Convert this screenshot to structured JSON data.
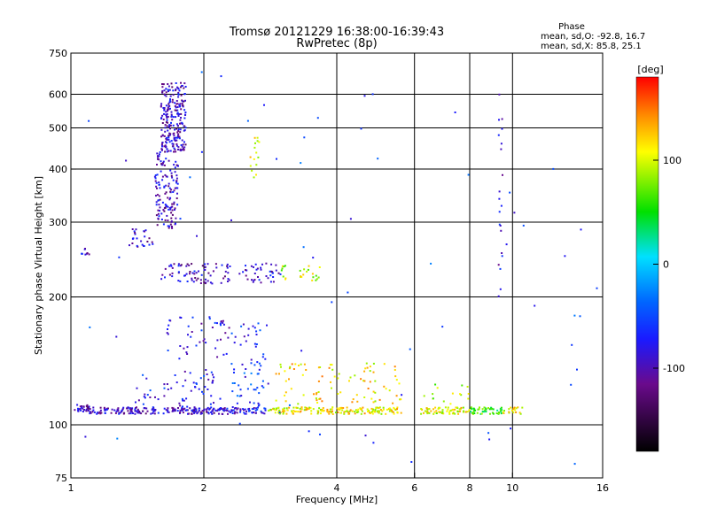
{
  "chart_data": {
    "type": "scatter",
    "title": "Tromsø 20121229 16:38:00-16:39:43",
    "subtitle": "RwPretec (8p)",
    "xlabel": "Frequency [MHz]",
    "ylabel": "Stationary phase Virtual Height [km]",
    "x_scale": "log",
    "y_scale": "log",
    "xlim": [
      1,
      16
    ],
    "ylim": [
      75,
      750
    ],
    "x_ticks": [
      1,
      2,
      4,
      6,
      8,
      10,
      16
    ],
    "y_ticks": [
      75,
      100,
      200,
      300,
      400,
      500,
      600,
      750
    ],
    "grid": true,
    "stats": {
      "heading": "Phase",
      "line_o": "mean, sd,O: -92.8, 16.7",
      "line_x": "mean, sd,X:  85.8, 25.1"
    },
    "colorbar": {
      "label": "[deg]",
      "range": [
        -180,
        180
      ],
      "ticks": [
        100,
        0,
        -100
      ]
    },
    "trace_groups": [
      {
        "x_range": [
          1.02,
          1.1
        ],
        "y_range": [
          107,
          112
        ],
        "phase": -95,
        "count": 30
      },
      {
        "x_range": [
          1.1,
          2.2
        ],
        "y_range": [
          106,
          110
        ],
        "phase": -95,
        "count": 200
      },
      {
        "x_range": [
          2.2,
          2.8
        ],
        "y_range": [
          106,
          110
        ],
        "phase": -80,
        "count": 60
      },
      {
        "x_range": [
          2.8,
          5.6
        ],
        "y_range": [
          106,
          110
        ],
        "phase": 110,
        "count": 180
      },
      {
        "x_range": [
          6.2,
          8.0
        ],
        "y_range": [
          106,
          110
        ],
        "phase": 105,
        "count": 70
      },
      {
        "x_range": [
          8.0,
          9.5
        ],
        "y_range": [
          106,
          110
        ],
        "phase": 60,
        "count": 50
      },
      {
        "x_range": [
          9.5,
          10.6
        ],
        "y_range": [
          106,
          110
        ],
        "phase": 110,
        "count": 20
      },
      {
        "x_range": [
          1.4,
          2.2
        ],
        "y_range": [
          110,
          135
        ],
        "phase": -75,
        "count": 60
      },
      {
        "x_range": [
          2.3,
          2.8
        ],
        "y_range": [
          110,
          140
        ],
        "phase": -60,
        "count": 40
      },
      {
        "x_range": [
          2.9,
          5.6
        ],
        "y_range": [
          112,
          140
        ],
        "phase": 115,
        "count": 90
      },
      {
        "x_range": [
          6.2,
          8.0
        ],
        "y_range": [
          112,
          125
        ],
        "phase": 80,
        "count": 15
      },
      {
        "x_range": [
          1.6,
          2.3
        ],
        "y_range": [
          140,
          180
        ],
        "phase": -80,
        "count": 45
      },
      {
        "x_range": [
          2.3,
          2.8
        ],
        "y_range": [
          140,
          175
        ],
        "phase": -70,
        "count": 25
      },
      {
        "x_range": [
          1.6,
          2.3
        ],
        "y_range": [
          215,
          240
        ],
        "phase": -95,
        "count": 75
      },
      {
        "x_range": [
          2.4,
          3.0
        ],
        "y_range": [
          215,
          240
        ],
        "phase": -90,
        "count": 40
      },
      {
        "x_range": [
          3.0,
          3.7
        ],
        "y_range": [
          218,
          238
        ],
        "phase": 95,
        "count": 25
      },
      {
        "x_range": [
          1.05,
          1.1
        ],
        "y_range": [
          250,
          260
        ],
        "phase": -95,
        "count": 8
      },
      {
        "x_range": [
          1.35,
          1.55
        ],
        "y_range": [
          260,
          290
        ],
        "phase": -95,
        "count": 25
      },
      {
        "x_range": [
          1.55,
          1.75
        ],
        "y_range": [
          290,
          440
        ],
        "phase": -95,
        "count": 140
      },
      {
        "x_range": [
          1.6,
          1.82
        ],
        "y_range": [
          440,
          640
        ],
        "phase": -95,
        "count": 230
      },
      {
        "x_range": [
          2.55,
          2.7
        ],
        "y_range": [
          380,
          480
        ],
        "phase": 110,
        "count": 15
      },
      {
        "x_range": [
          9.3,
          9.5
        ],
        "y_range": [
          200,
          650
        ],
        "phase": -85,
        "count": 20
      },
      {
        "x_range": [
          1.0,
          16.0
        ],
        "y_range": [
          80,
          700
        ],
        "phase": -60,
        "count": 70
      }
    ]
  }
}
